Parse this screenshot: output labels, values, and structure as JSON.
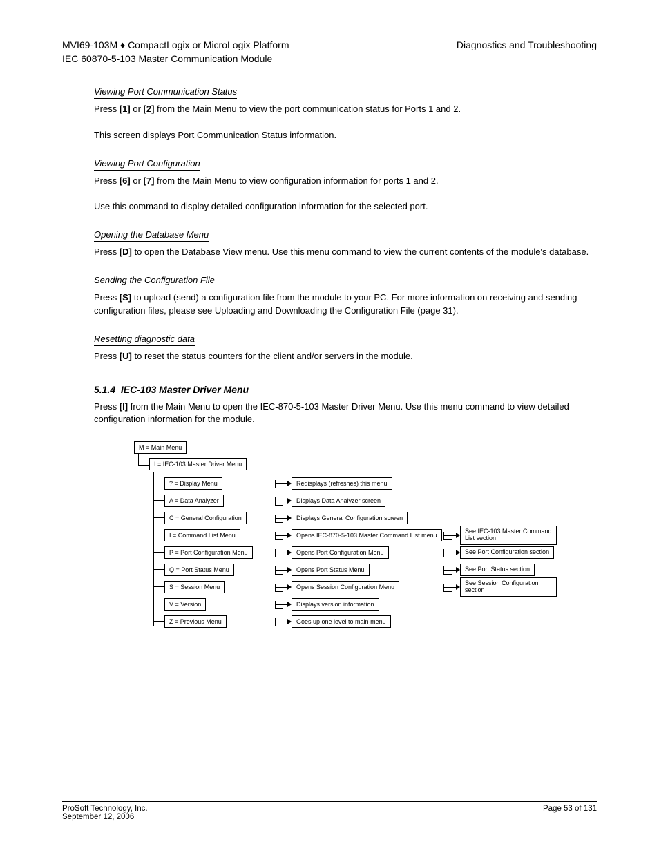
{
  "header": {
    "left_line1": "MVI69-103M ♦ CompactLogix or MicroLogix Platform",
    "left_line2": "IEC 60870-5-103 Master Communication Module",
    "right_line1": "Diagnostics and Troubleshooting"
  },
  "sections": [
    {
      "title": "Viewing Port Communication Status",
      "body": "Press <span class='key'>[1]</span> or <span class='key'>[2]</span> from the Main Menu to view the port communication status for Ports 1 and 2.<br><br>This screen displays Port Communication Status information."
    },
    {
      "title": "Viewing Port Configuration",
      "body": "Press <span class='key'>[6]</span> or <span class='key'>[7]</span> from the Main Menu to view configuration information for ports 1 and 2.<br><br>Use this command to display detailed configuration information for the selected port."
    },
    {
      "title": "Opening the Database Menu",
      "body": "Press <span class='key'>[D]</span> to open the Database View menu. Use this menu command to view the current contents of the module's database."
    },
    {
      "title": "Sending the Configuration File",
      "body": "Press <span class='key'>[S]</span> to upload (send) a configuration file from the module to your PC. For more information on receiving and sending configuration files, please see Uploading and Downloading the Configuration File (page 31)."
    },
    {
      "title": "Resetting diagnostic data",
      "body": "Press <span class='key'>[U]</span> to reset the status counters for the client and/or servers in the module."
    }
  ],
  "driver_menu": {
    "heading_number": "5.1.4",
    "heading_text": "IEC-103 Master Driver Menu",
    "intro": "Press <span class='key'>[I]</span> from the Main Menu to open the IEC-870-5-103 Master Driver Menu. Use this menu command to view detailed configuration information for the module.",
    "root": "M = Main Menu",
    "sub": "I = IEC-103 Master Driver Menu",
    "rows": [
      {
        "c1": "? = Display Menu",
        "c2": "Redisplays (refreshes) this menu",
        "c3": ""
      },
      {
        "c1": "A = Data Analyzer",
        "c2": "Displays Data Analyzer screen",
        "c3": ""
      },
      {
        "c1": "C = General Configuration",
        "c2": "Displays General Configuration screen",
        "c3": ""
      },
      {
        "c1": "I = Command List Menu",
        "c2": "Opens IEC-870-5-103 Master Command List menu",
        "c3": "See IEC-103 Master Command List section"
      },
      {
        "c1": "P = Port Configuration Menu",
        "c2": "Opens Port Configuration Menu",
        "c3": "See Port Configuration section"
      },
      {
        "c1": "Q = Port Status Menu",
        "c2": "Opens Port Status Menu",
        "c3": "See Port Status section"
      },
      {
        "c1": "S = Session Menu",
        "c2": "Opens Session Configuration Menu",
        "c3": "See Session Configuration section"
      },
      {
        "c1": "V = Version",
        "c2": "Displays version information",
        "c3": ""
      },
      {
        "c1": "Z = Previous Menu",
        "c2": "Goes up one level to main menu",
        "c3": ""
      }
    ]
  },
  "footer": {
    "left_line1": "ProSoft Technology, Inc.",
    "left_line2": "September 12, 2006",
    "right_line1": "Page 53 of 131"
  },
  "colors": {
    "text": "#000000",
    "background": "#ffffff",
    "rule": "#000000"
  }
}
